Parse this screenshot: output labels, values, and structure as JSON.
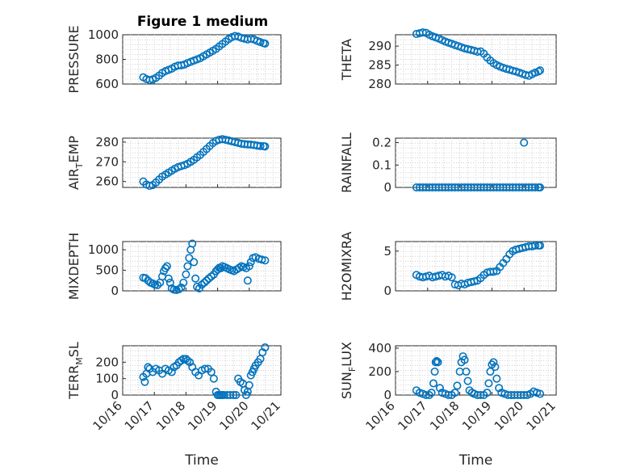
{
  "figure": {
    "title": "Figure 1 medium",
    "marker_color": "#0072bd"
  },
  "chart_data": [
    {
      "type": "scatter",
      "ylabel": "PRESSURE",
      "ylim": [
        600,
        1000
      ],
      "yticks": [
        600,
        800,
        1000
      ],
      "xlim": [
        0,
        5
      ],
      "xticks": [
        0,
        1,
        2,
        3,
        4,
        5
      ],
      "xticklabels": [
        "10/16",
        "10/17",
        "10/18",
        "10/19",
        "10/20",
        "10/21"
      ],
      "show_xticklabels": false,
      "x": [
        0.65,
        0.75,
        0.85,
        0.95,
        1.05,
        1.15,
        1.25,
        1.35,
        1.45,
        1.55,
        1.65,
        1.75,
        1.85,
        1.95,
        2.05,
        2.15,
        2.25,
        2.35,
        2.45,
        2.55,
        2.65,
        2.75,
        2.85,
        2.95,
        3.05,
        3.15,
        3.25,
        3.35,
        3.45,
        3.55,
        3.65,
        3.75,
        3.85,
        3.95,
        4.05,
        4.15,
        4.25,
        4.35,
        4.45,
        4.5
      ],
      "y": [
        655,
        640,
        632,
        638,
        650,
        668,
        690,
        705,
        715,
        725,
        740,
        750,
        752,
        758,
        770,
        780,
        790,
        800,
        810,
        825,
        840,
        855,
        870,
        885,
        905,
        925,
        945,
        965,
        980,
        990,
        985,
        975,
        968,
        962,
        968,
        962,
        950,
        940,
        932,
        928
      ]
    },
    {
      "type": "scatter",
      "ylabel": "THETA",
      "ylim": [
        280,
        293
      ],
      "yticks": [
        280,
        285,
        290
      ],
      "xlim": [
        0,
        5
      ],
      "xticks": [
        0,
        1,
        2,
        3,
        4,
        5
      ],
      "xticklabels": [
        "10/16",
        "10/17",
        "10/18",
        "10/19",
        "10/20",
        "10/21"
      ],
      "show_xticklabels": false,
      "x": [
        0.65,
        0.75,
        0.85,
        0.95,
        1.05,
        1.15,
        1.25,
        1.35,
        1.45,
        1.55,
        1.65,
        1.75,
        1.85,
        1.95,
        2.05,
        2.15,
        2.25,
        2.35,
        2.45,
        2.55,
        2.65,
        2.75,
        2.85,
        2.95,
        3.05,
        3.15,
        3.25,
        3.35,
        3.45,
        3.55,
        3.65,
        3.75,
        3.85,
        3.95,
        4.05,
        4.15,
        4.25,
        4.35,
        4.45,
        4.5
      ],
      "y": [
        293.2,
        293.4,
        293.6,
        293.5,
        293.0,
        292.6,
        292.3,
        292.0,
        291.6,
        291.2,
        290.9,
        290.6,
        290.3,
        290.0,
        289.7,
        289.4,
        289.2,
        289.0,
        288.8,
        288.5,
        288.6,
        288.0,
        287.0,
        286.2,
        285.5,
        285.0,
        284.6,
        284.3,
        284.0,
        283.8,
        283.5,
        283.3,
        283.0,
        282.7,
        282.4,
        282.2,
        282.6,
        283.0,
        283.3,
        283.6
      ]
    },
    {
      "type": "scatter",
      "ylabel": "AIR_TEMP",
      "ylim": [
        257,
        282
      ],
      "yticks": [
        260,
        270,
        280
      ],
      "xlim": [
        0,
        5
      ],
      "xticks": [
        0,
        1,
        2,
        3,
        4,
        5
      ],
      "xticklabels": [
        "10/16",
        "10/17",
        "10/18",
        "10/19",
        "10/20",
        "10/21"
      ],
      "show_xticklabels": false,
      "x": [
        0.65,
        0.75,
        0.85,
        0.95,
        1.05,
        1.15,
        1.25,
        1.35,
        1.45,
        1.55,
        1.65,
        1.75,
        1.85,
        1.95,
        2.05,
        2.15,
        2.25,
        2.35,
        2.45,
        2.55,
        2.65,
        2.75,
        2.85,
        2.95,
        3.05,
        3.15,
        3.25,
        3.35,
        3.45,
        3.55,
        3.65,
        3.75,
        3.85,
        3.95,
        4.05,
        4.15,
        4.25,
        4.35,
        4.45,
        4.5
      ],
      "y": [
        260,
        258.5,
        257.8,
        258.2,
        259.5,
        261,
        262.5,
        263.5,
        264.5,
        265.5,
        266.5,
        267.3,
        267.8,
        268.3,
        269,
        270,
        271,
        272.3,
        273.5,
        275,
        276.5,
        278,
        279.5,
        280.6,
        281.2,
        281.5,
        281.2,
        280.8,
        280.4,
        280,
        279.6,
        279.2,
        279,
        278.8,
        278.7,
        278.5,
        278.2,
        278,
        277.9,
        277.8
      ]
    },
    {
      "type": "scatter",
      "ylabel": "RAINFALL",
      "ylim": [
        0,
        0.22
      ],
      "yticks": [
        0,
        0.1,
        0.2
      ],
      "xlim": [
        0,
        5
      ],
      "xticks": [
        0,
        1,
        2,
        3,
        4,
        5
      ],
      "xticklabels": [
        "10/16",
        "10/17",
        "10/18",
        "10/19",
        "10/20",
        "10/21"
      ],
      "show_xticklabels": false,
      "x": [
        0.65,
        0.75,
        0.85,
        0.95,
        1.05,
        1.15,
        1.25,
        1.35,
        1.45,
        1.55,
        1.65,
        1.75,
        1.85,
        1.95,
        2.05,
        2.15,
        2.25,
        2.35,
        2.45,
        2.55,
        2.65,
        2.75,
        2.85,
        2.95,
        3.05,
        3.15,
        3.25,
        3.35,
        3.45,
        3.55,
        3.65,
        3.75,
        3.85,
        3.95,
        4.0,
        4.05,
        4.15,
        4.25,
        4.35,
        4.45,
        4.5
      ],
      "y": [
        0,
        0,
        0,
        0,
        0,
        0,
        0,
        0,
        0,
        0,
        0,
        0,
        0,
        0,
        0,
        0,
        0,
        0,
        0,
        0,
        0,
        0,
        0,
        0,
        0,
        0,
        0,
        0,
        0,
        0,
        0,
        0,
        0,
        0,
        0.2,
        0,
        0,
        0,
        0,
        0,
        0
      ]
    },
    {
      "type": "scatter",
      "ylabel": "MIXDEPTH",
      "ylim": [
        0,
        1200
      ],
      "yticks": [
        0,
        500,
        1000
      ],
      "xlim": [
        0,
        5
      ],
      "xticks": [
        0,
        1,
        2,
        3,
        4,
        5
      ],
      "xticklabels": [
        "10/16",
        "10/17",
        "10/18",
        "10/19",
        "10/20",
        "10/21"
      ],
      "show_xticklabels": false,
      "x": [
        0.65,
        0.72,
        0.8,
        0.88,
        0.95,
        1.02,
        1.1,
        1.18,
        1.25,
        1.3,
        1.35,
        1.4,
        1.45,
        1.5,
        1.55,
        1.62,
        1.7,
        1.78,
        1.85,
        1.92,
        2.0,
        2.05,
        2.1,
        2.15,
        2.2,
        2.25,
        2.3,
        2.35,
        2.42,
        2.5,
        2.58,
        2.65,
        2.72,
        2.8,
        2.88,
        2.95,
        3.0,
        3.05,
        3.1,
        3.15,
        3.22,
        3.3,
        3.38,
        3.45,
        3.52,
        3.6,
        3.68,
        3.75,
        3.82,
        3.9,
        3.95,
        4.0,
        4.05,
        4.12,
        4.2,
        4.3,
        4.4,
        4.5
      ],
      "y": [
        320,
        310,
        250,
        200,
        180,
        150,
        140,
        200,
        350,
        480,
        550,
        600,
        300,
        200,
        60,
        30,
        20,
        40,
        80,
        200,
        400,
        600,
        800,
        1000,
        1150,
        700,
        300,
        100,
        60,
        150,
        200,
        250,
        300,
        350,
        400,
        480,
        520,
        560,
        550,
        600,
        580,
        550,
        520,
        500,
        480,
        520,
        560,
        600,
        580,
        550,
        250,
        600,
        700,
        800,
        820,
        780,
        760,
        740
      ]
    },
    {
      "type": "scatter",
      "ylabel": "H2OMIXRA",
      "ylim": [
        0,
        6.2
      ],
      "yticks": [
        0,
        5
      ],
      "xlim": [
        0,
        5
      ],
      "xticks": [
        0,
        1,
        2,
        3,
        4,
        5
      ],
      "xticklabels": [
        "10/16",
        "10/17",
        "10/18",
        "10/19",
        "10/20",
        "10/21"
      ],
      "show_xticklabels": false,
      "x": [
        0.65,
        0.75,
        0.85,
        0.95,
        1.05,
        1.15,
        1.25,
        1.35,
        1.45,
        1.55,
        1.65,
        1.75,
        1.85,
        1.95,
        2.05,
        2.15,
        2.25,
        2.35,
        2.45,
        2.55,
        2.65,
        2.75,
        2.85,
        2.95,
        3.05,
        3.15,
        3.25,
        3.35,
        3.45,
        3.55,
        3.65,
        3.75,
        3.85,
        3.95,
        4.05,
        4.15,
        4.25,
        4.35,
        4.45,
        4.5
      ],
      "y": [
        2.0,
        1.8,
        1.7,
        1.8,
        1.9,
        1.7,
        1.8,
        1.9,
        2.0,
        1.8,
        1.9,
        1.7,
        0.8,
        0.7,
        0.9,
        0.8,
        1.0,
        1.1,
        1.2,
        1.3,
        1.6,
        2.0,
        2.3,
        2.4,
        2.4,
        2.5,
        3.0,
        3.5,
        4.0,
        4.6,
        5.0,
        5.2,
        5.3,
        5.4,
        5.5,
        5.6,
        5.6,
        5.7,
        5.7,
        5.7
      ]
    },
    {
      "type": "scatter",
      "ylabel": "TERR_MSL",
      "ylim": [
        0,
        300
      ],
      "yticks": [
        0,
        100,
        200
      ],
      "xlim": [
        0,
        5
      ],
      "xticks": [
        0,
        1,
        2,
        3,
        4,
        5
      ],
      "xticklabels": [
        "10/16",
        "10/17",
        "10/18",
        "10/19",
        "10/20",
        "10/21"
      ],
      "show_xticklabels": true,
      "x": [
        0.65,
        0.7,
        0.75,
        0.8,
        0.85,
        0.95,
        1.05,
        1.15,
        1.25,
        1.35,
        1.45,
        1.55,
        1.62,
        1.7,
        1.78,
        1.85,
        1.92,
        2.0,
        2.05,
        2.12,
        2.2,
        2.3,
        2.4,
        2.5,
        2.6,
        2.7,
        2.8,
        2.88,
        2.95,
        3.0,
        3.05,
        3.1,
        3.15,
        3.2,
        3.3,
        3.4,
        3.5,
        3.58,
        3.65,
        3.72,
        3.8,
        3.85,
        3.9,
        3.95,
        4.0,
        4.05,
        4.1,
        4.15,
        4.2,
        4.28,
        4.35,
        4.42,
        4.5
      ],
      "y": [
        110,
        80,
        130,
        170,
        160,
        140,
        160,
        150,
        130,
        160,
        150,
        140,
        170,
        180,
        200,
        210,
        220,
        220,
        210,
        200,
        170,
        140,
        120,
        150,
        160,
        160,
        140,
        100,
        20,
        0,
        0,
        0,
        0,
        0,
        0,
        0,
        0,
        0,
        100,
        80,
        70,
        30,
        0,
        20,
        60,
        120,
        140,
        160,
        180,
        200,
        220,
        260,
        290
      ]
    },
    {
      "type": "scatter",
      "ylabel": "SUN_FLUX",
      "ylim": [
        0,
        420
      ],
      "yticks": [
        0,
        200,
        400
      ],
      "xlim": [
        0,
        5
      ],
      "xticks": [
        0,
        1,
        2,
        3,
        4,
        5
      ],
      "xticklabels": [
        "10/16",
        "10/17",
        "10/18",
        "10/19",
        "10/20",
        "10/21"
      ],
      "show_xticklabels": true,
      "x": [
        0.65,
        0.75,
        0.85,
        0.95,
        1.05,
        1.12,
        1.18,
        1.22,
        1.25,
        1.28,
        1.32,
        1.38,
        1.45,
        1.55,
        1.65,
        1.75,
        1.85,
        1.92,
        2.0,
        2.05,
        2.1,
        2.15,
        2.2,
        2.25,
        2.3,
        2.38,
        2.45,
        2.55,
        2.65,
        2.75,
        2.85,
        2.9,
        2.95,
        3.0,
        3.05,
        3.1,
        3.15,
        3.22,
        3.3,
        3.4,
        3.5,
        3.6,
        3.7,
        3.8,
        3.9,
        4.0,
        4.1,
        4.2,
        4.3,
        4.4,
        4.5
      ],
      "y": [
        40,
        20,
        10,
        0,
        0,
        20,
        100,
        200,
        280,
        290,
        280,
        60,
        20,
        10,
        0,
        0,
        20,
        80,
        200,
        280,
        330,
        300,
        200,
        120,
        40,
        20,
        10,
        0,
        0,
        0,
        20,
        100,
        200,
        260,
        280,
        240,
        140,
        60,
        20,
        10,
        0,
        0,
        0,
        0,
        0,
        0,
        0,
        10,
        30,
        20,
        10
      ]
    }
  ]
}
